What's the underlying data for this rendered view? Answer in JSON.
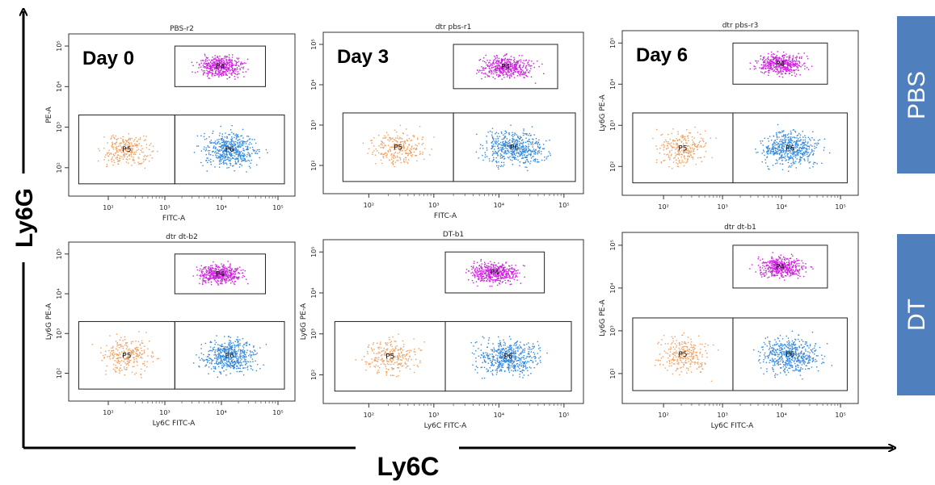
{
  "figure": {
    "y_axis_label": "Ly6G",
    "x_axis_label": "Ly6C",
    "conditions": [
      "PBS",
      "DT"
    ]
  },
  "colors": {
    "P4": "#cc22dd",
    "P5": "#f0a060",
    "P6": "#3388dd",
    "condition_box": "#4f7fbd"
  },
  "chart_data": [
    {
      "type": "scatter",
      "title": "PBS-r2",
      "day_label": "Day 0",
      "row": "PBS",
      "xlabel": "FITC-A",
      "ylabel": "PE-A",
      "xscale": "log",
      "yscale": "log",
      "x_ticks": [
        "10²",
        "10³",
        "10⁴",
        "10⁵"
      ],
      "y_ticks": [
        "10²",
        "10³",
        "10⁴",
        "10⁵"
      ],
      "gates": [
        {
          "name": "P4",
          "population": "Ly6G high",
          "color": "#cc22dd",
          "xrange": [
            1500,
            60000
          ],
          "yrange": [
            10000,
            100000
          ]
        },
        {
          "name": "P5",
          "population": "Ly6C low",
          "color": "#f0a060",
          "xrange": [
            30,
            1500
          ],
          "yrange": [
            40,
            2000
          ]
        },
        {
          "name": "P6",
          "population": "Ly6C high",
          "color": "#3388dd",
          "xrange": [
            1500,
            130000
          ],
          "yrange": [
            40,
            2000
          ]
        }
      ]
    },
    {
      "type": "scatter",
      "title": "dtr pbs-r1",
      "day_label": "Day 3",
      "row": "PBS",
      "xlabel": "FITC-A",
      "ylabel": "",
      "xscale": "log",
      "yscale": "log",
      "x_ticks": [
        "10²",
        "10³",
        "10⁴",
        "10⁵"
      ],
      "y_ticks": [
        "10²",
        "10³",
        "10⁴",
        "10⁵"
      ],
      "gates": [
        {
          "name": "P4",
          "population": "Ly6G high",
          "color": "#cc22dd",
          "xrange": [
            2000,
            80000
          ],
          "yrange": [
            8000,
            100000
          ]
        },
        {
          "name": "P5",
          "population": "Ly6C low",
          "color": "#f0a060",
          "xrange": [
            40,
            2000
          ],
          "yrange": [
            40,
            2000
          ]
        },
        {
          "name": "P6",
          "population": "Ly6C high",
          "color": "#3388dd",
          "xrange": [
            2000,
            150000
          ],
          "yrange": [
            40,
            2000
          ]
        }
      ]
    },
    {
      "type": "scatter",
      "title": "dtr pbs-r3",
      "day_label": "Day 6",
      "row": "PBS",
      "xlabel": "",
      "ylabel": "Ly6G PE-A",
      "xscale": "log",
      "yscale": "log",
      "x_ticks": [
        "10²",
        "10³",
        "10⁴",
        "10⁵"
      ],
      "y_ticks": [
        "10²",
        "10³",
        "10⁴",
        "10⁵"
      ],
      "gates": [
        {
          "name": "P4",
          "population": "Ly6G high",
          "color": "#cc22dd",
          "xrange": [
            1500,
            60000
          ],
          "yrange": [
            10000,
            100000
          ]
        },
        {
          "name": "P5",
          "population": "Ly6C low",
          "color": "#f0a060",
          "xrange": [
            30,
            1500
          ],
          "yrange": [
            40,
            2000
          ]
        },
        {
          "name": "P6",
          "population": "Ly6C high",
          "color": "#3388dd",
          "xrange": [
            1500,
            130000
          ],
          "yrange": [
            40,
            2000
          ]
        }
      ]
    },
    {
      "type": "scatter",
      "title": "dtr dt-b2",
      "day_label": "",
      "row": "DT",
      "xlabel": "Ly6C FITC-A",
      "ylabel": "Ly6G PE-A",
      "xscale": "log",
      "yscale": "log",
      "x_ticks": [
        "10²",
        "10³",
        "10⁴",
        "10⁵"
      ],
      "y_ticks": [
        "10²",
        "10³",
        "10⁴",
        "10⁵"
      ],
      "gates": [
        {
          "name": "P4",
          "population": "Ly6G high",
          "color": "#cc22dd",
          "xrange": [
            1500,
            60000
          ],
          "yrange": [
            10000,
            100000
          ]
        },
        {
          "name": "P5",
          "population": "Ly6C low",
          "color": "#f0a060",
          "xrange": [
            30,
            1500
          ],
          "yrange": [
            40,
            2000
          ]
        },
        {
          "name": "P6",
          "population": "Ly6C high",
          "color": "#3388dd",
          "xrange": [
            1500,
            130000
          ],
          "yrange": [
            40,
            2000
          ]
        }
      ]
    },
    {
      "type": "scatter",
      "title": "DT-b1",
      "day_label": "",
      "row": "DT",
      "xlabel": "Ly6C FITC-A",
      "ylabel": "Ly6G PE-A",
      "xscale": "log",
      "yscale": "log",
      "x_ticks": [
        "10²",
        "10³",
        "10⁴",
        "10⁵"
      ],
      "y_ticks": [
        "10²",
        "10³",
        "10⁴",
        "10⁵"
      ],
      "gates": [
        {
          "name": "P4",
          "population": "Ly6G high",
          "color": "#cc22dd",
          "xrange": [
            1500,
            50000
          ],
          "yrange": [
            10000,
            100000
          ]
        },
        {
          "name": "P5",
          "population": "Ly6C low",
          "color": "#f0a060",
          "xrange": [
            30,
            1500
          ],
          "yrange": [
            40,
            2000
          ]
        },
        {
          "name": "P6",
          "population": "Ly6C high",
          "color": "#3388dd",
          "xrange": [
            1500,
            130000
          ],
          "yrange": [
            40,
            2000
          ]
        }
      ]
    },
    {
      "type": "scatter",
      "title": "dtr dt-b1",
      "day_label": "",
      "row": "DT",
      "xlabel": "Ly6C FITC-A",
      "ylabel": "Ly6G PE-A",
      "xscale": "log",
      "yscale": "log",
      "x_ticks": [
        "10²",
        "10³",
        "10⁴",
        "10⁵"
      ],
      "y_ticks": [
        "10²",
        "10³",
        "10⁴",
        "10⁵"
      ],
      "gates": [
        {
          "name": "P4",
          "population": "Ly6G high",
          "color": "#cc22dd",
          "xrange": [
            1500,
            60000
          ],
          "yrange": [
            10000,
            100000
          ]
        },
        {
          "name": "P5",
          "population": "Ly6C low",
          "color": "#f0a060",
          "xrange": [
            30,
            1500
          ],
          "yrange": [
            40,
            2000
          ]
        },
        {
          "name": "P6",
          "population": "Ly6C high",
          "color": "#3388dd",
          "xrange": [
            1500,
            130000
          ],
          "yrange": [
            40,
            2000
          ]
        }
      ]
    }
  ]
}
